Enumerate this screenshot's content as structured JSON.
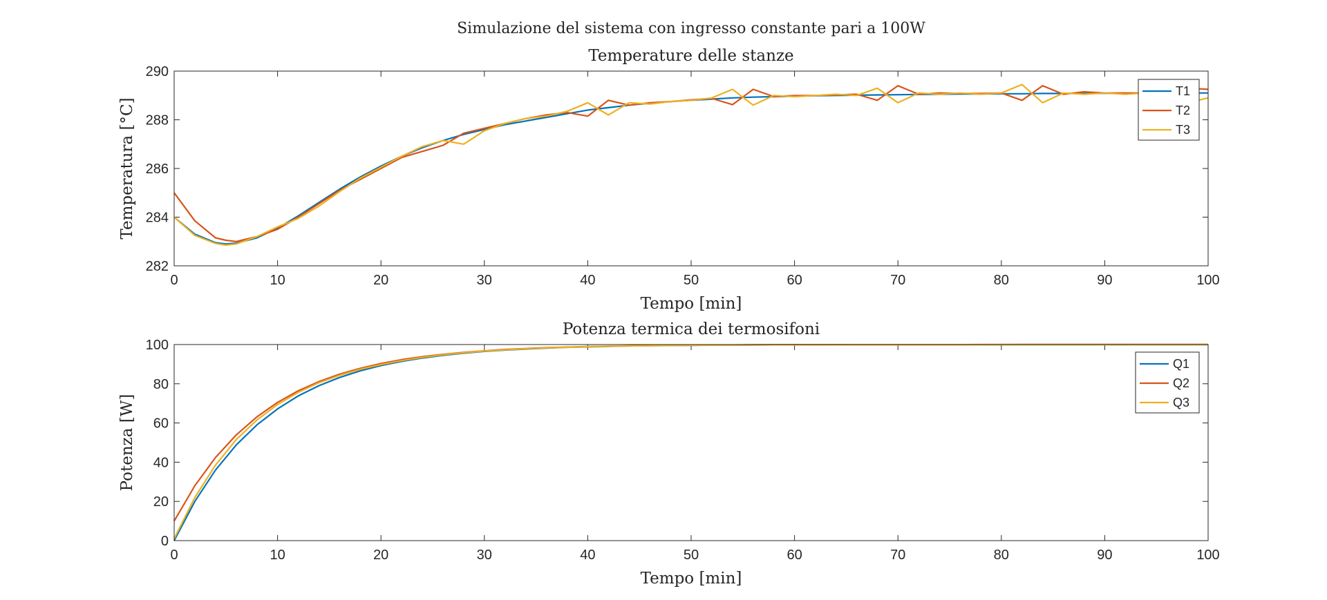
{
  "figure": {
    "suptitle": "Simulazione del sistema con ingresso constante pari a 100W"
  },
  "chart_data": [
    {
      "type": "line",
      "title": "Temperature delle stanze",
      "xlabel": "Tempo [min]",
      "ylabel": "Temperatura [°C]",
      "xlim": [
        0,
        100
      ],
      "ylim": [
        282,
        290
      ],
      "xticks": [
        0,
        10,
        20,
        30,
        40,
        50,
        60,
        70,
        80,
        90,
        100
      ],
      "yticks": [
        282,
        284,
        286,
        288,
        290
      ],
      "grid": false,
      "legend": "top-right",
      "x": [
        0,
        2,
        4,
        5,
        6,
        8,
        10,
        12,
        14,
        16,
        18,
        20,
        22,
        24,
        26,
        28,
        30,
        32,
        34,
        36,
        38,
        40,
        42,
        44,
        46,
        48,
        50,
        52,
        54,
        56,
        58,
        60,
        62,
        64,
        66,
        68,
        70,
        72,
        74,
        76,
        78,
        80,
        82,
        84,
        86,
        88,
        90,
        92,
        94,
        96,
        98,
        100
      ],
      "series": [
        {
          "name": "T1",
          "color": "#0072BD",
          "values": [
            284.0,
            283.3,
            282.95,
            282.9,
            282.93,
            283.15,
            283.55,
            284.05,
            284.6,
            285.15,
            285.65,
            286.1,
            286.5,
            286.85,
            287.15,
            287.4,
            287.6,
            287.8,
            287.95,
            288.1,
            288.25,
            288.4,
            288.5,
            288.6,
            288.68,
            288.75,
            288.8,
            288.85,
            288.9,
            288.93,
            288.95,
            288.97,
            288.99,
            289.0,
            289.01,
            289.02,
            289.03,
            289.04,
            289.05,
            289.06,
            289.06,
            289.07,
            289.07,
            289.08,
            289.08,
            289.08,
            289.09,
            289.09,
            289.09,
            289.1,
            289.1,
            289.1
          ]
        },
        {
          "name": "T2",
          "color": "#D95319",
          "values": [
            285.0,
            283.85,
            283.15,
            283.05,
            283.0,
            283.2,
            283.5,
            284.0,
            284.55,
            285.1,
            285.55,
            286.0,
            286.45,
            286.7,
            286.95,
            287.45,
            287.65,
            287.85,
            288.05,
            288.2,
            288.3,
            288.15,
            288.8,
            288.6,
            288.7,
            288.75,
            288.82,
            288.88,
            288.62,
            289.25,
            288.95,
            289.0,
            289.0,
            289.02,
            289.05,
            288.8,
            289.4,
            289.05,
            289.1,
            289.08,
            289.08,
            289.1,
            288.8,
            289.4,
            289.05,
            289.15,
            289.1,
            289.1,
            289.1,
            289.1,
            289.3,
            289.25
          ]
        },
        {
          "name": "T3",
          "color": "#EDB120",
          "values": [
            284.0,
            283.25,
            282.92,
            282.85,
            282.9,
            283.2,
            283.6,
            283.95,
            284.45,
            285.05,
            285.6,
            286.05,
            286.5,
            286.9,
            287.15,
            287.0,
            287.55,
            287.85,
            288.05,
            288.15,
            288.35,
            288.7,
            288.2,
            288.7,
            288.65,
            288.75,
            288.8,
            288.9,
            289.25,
            288.6,
            289.0,
            288.95,
            289.0,
            289.05,
            289.0,
            289.3,
            288.7,
            289.1,
            289.05,
            289.1,
            289.05,
            289.1,
            289.45,
            288.7,
            289.1,
            289.05,
            289.1,
            289.05,
            289.1,
            289.0,
            288.7,
            288.9
          ]
        }
      ]
    },
    {
      "type": "line",
      "title": "Potenza termica dei termosifoni",
      "xlabel": "Tempo [min]",
      "ylabel": "Potenza [W]",
      "xlim": [
        0,
        100
      ],
      "ylim": [
        0,
        100
      ],
      "xticks": [
        0,
        10,
        20,
        30,
        40,
        50,
        60,
        70,
        80,
        90,
        100
      ],
      "yticks": [
        0,
        20,
        40,
        60,
        80,
        100
      ],
      "grid": false,
      "legend": "top-right",
      "x": [
        0,
        2,
        4,
        6,
        8,
        10,
        12,
        14,
        16,
        18,
        20,
        22,
        24,
        26,
        28,
        30,
        32,
        34,
        36,
        38,
        40,
        42,
        44,
        46,
        48,
        50,
        52,
        54,
        56,
        58,
        60,
        62,
        64,
        66,
        68,
        70,
        72,
        74,
        76,
        78,
        80,
        82,
        84,
        86,
        88,
        90,
        92,
        94,
        96,
        98,
        100
      ],
      "series": [
        {
          "name": "Q1",
          "color": "#0072BD",
          "values": [
            0.0,
            20.0,
            36.0,
            48.8,
            59.0,
            67.2,
            73.8,
            79.0,
            83.2,
            86.6,
            89.3,
            91.4,
            93.1,
            94.5,
            95.6,
            96.5,
            97.2,
            97.7,
            98.2,
            98.6,
            98.8,
            99.1,
            99.3,
            99.4,
            99.5,
            99.6,
            99.7,
            99.8,
            99.8,
            99.85,
            99.9,
            99.9,
            99.92,
            99.94,
            99.95,
            99.96,
            99.97,
            99.97,
            99.98,
            99.98,
            99.98,
            99.99,
            99.99,
            99.99,
            99.99,
            99.99,
            100.0,
            100.0,
            100.0,
            100.0,
            100.0
          ]
        },
        {
          "name": "Q2",
          "color": "#D95319",
          "values": [
            10.0,
            28.0,
            42.4,
            53.9,
            63.1,
            70.5,
            76.4,
            81.1,
            84.9,
            87.9,
            90.3,
            92.3,
            93.8,
            95.0,
            96.0,
            96.8,
            97.5,
            98.0,
            98.4,
            98.7,
            99.0,
            99.2,
            99.35,
            99.5,
            99.6,
            99.7,
            99.75,
            99.8,
            99.85,
            99.88,
            99.9,
            99.92,
            99.94,
            99.95,
            99.96,
            99.97,
            99.97,
            99.98,
            99.98,
            99.99,
            99.99,
            99.99,
            99.99,
            100.0,
            100.0,
            100.0,
            100.0,
            100.0,
            100.0,
            100.0,
            100.0
          ]
        },
        {
          "name": "Q3",
          "color": "#EDB120",
          "values": [
            1.0,
            22.0,
            38.5,
            51.5,
            61.5,
            69.4,
            75.6,
            80.5,
            84.3,
            87.4,
            89.8,
            91.8,
            93.4,
            94.8,
            95.8,
            96.7,
            97.3,
            97.9,
            98.3,
            98.6,
            98.9,
            99.2,
            99.3,
            99.45,
            99.55,
            99.65,
            99.72,
            99.8,
            99.83,
            99.86,
            99.9,
            99.92,
            99.93,
            99.95,
            99.96,
            99.97,
            99.97,
            99.98,
            99.98,
            99.98,
            99.99,
            99.99,
            99.99,
            99.99,
            100.0,
            100.0,
            100.0,
            100.0,
            100.0,
            100.0,
            100.0
          ]
        }
      ]
    }
  ]
}
